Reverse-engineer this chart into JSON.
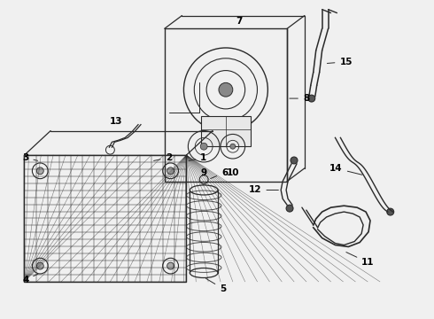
{
  "bg_color": "#f0f0f0",
  "line_color": "#2a2a2a",
  "lw_main": 1.0,
  "lw_thin": 0.6,
  "fig_width": 4.9,
  "fig_height": 3.6,
  "dpi": 100
}
